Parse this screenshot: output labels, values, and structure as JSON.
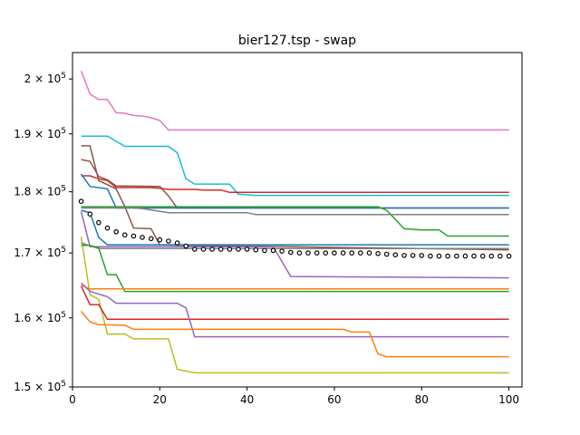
{
  "chart_data": {
    "type": "line",
    "title": "bier127.tsp - swap",
    "xlabel": "",
    "ylabel": "",
    "yscale": "log",
    "xlim": [
      0,
      103
    ],
    "ylim": [
      150000,
      205000
    ],
    "xticks": [
      0,
      20,
      40,
      60,
      80,
      100
    ],
    "xtick_labels": [
      "0",
      "20",
      "40",
      "60",
      "80",
      "100"
    ],
    "yticks": [
      150000,
      160000,
      170000,
      180000,
      190000,
      200000
    ],
    "ytick_labels": [
      "1.5 × 10^5",
      "1.6 × 10^5",
      "1.7 × 10^5",
      "1.8 × 10^5",
      "1.9 × 10^5",
      "2 × 10^5"
    ],
    "grid": false,
    "legend": "none",
    "series": [
      {
        "color": "#e377c2",
        "points": [
          [
            2,
            201500
          ],
          [
            4,
            197200
          ],
          [
            6,
            196200
          ],
          [
            8,
            196200
          ],
          [
            10,
            193800
          ],
          [
            12,
            193700
          ],
          [
            14,
            193300
          ],
          [
            16,
            193200
          ],
          [
            18,
            192900
          ],
          [
            20,
            192400
          ],
          [
            22,
            190700
          ],
          [
            100,
            190700
          ]
        ]
      },
      {
        "color": "#17becf",
        "points": [
          [
            2,
            189600
          ],
          [
            8,
            189600
          ],
          [
            12,
            187800
          ],
          [
            22,
            187800
          ],
          [
            24,
            186700
          ],
          [
            26,
            182200
          ],
          [
            28,
            181300
          ],
          [
            36,
            181300
          ],
          [
            38,
            179600
          ],
          [
            42,
            179400
          ],
          [
            100,
            179400
          ]
        ]
      },
      {
        "color": "#8c564b",
        "points": [
          [
            2,
            187900
          ],
          [
            4,
            187900
          ],
          [
            6,
            181900
          ],
          [
            10,
            180500
          ],
          [
            12,
            177500
          ],
          [
            14,
            174000
          ],
          [
            18,
            173900
          ],
          [
            20,
            171300
          ],
          [
            100,
            170500
          ]
        ]
      },
      {
        "color": "#8c564b",
        "points": [
          [
            2,
            185500
          ],
          [
            4,
            185200
          ],
          [
            6,
            182600
          ],
          [
            8,
            182000
          ],
          [
            10,
            181000
          ],
          [
            20,
            180900
          ],
          [
            22,
            179300
          ],
          [
            24,
            177300
          ],
          [
            100,
            177300
          ]
        ]
      },
      {
        "color": "#d62728",
        "points": [
          [
            2,
            182700
          ],
          [
            4,
            182700
          ],
          [
            6,
            182200
          ],
          [
            8,
            181900
          ],
          [
            10,
            180700
          ],
          [
            18,
            180700
          ],
          [
            20,
            180600
          ],
          [
            22,
            180400
          ],
          [
            28,
            180400
          ],
          [
            30,
            180300
          ],
          [
            34,
            180300
          ],
          [
            36,
            179900
          ],
          [
            100,
            179900
          ]
        ]
      },
      {
        "color": "#1f77b4",
        "points": [
          [
            2,
            183000
          ],
          [
            4,
            180900
          ],
          [
            8,
            180500
          ],
          [
            10,
            177300
          ],
          [
            100,
            177300
          ]
        ]
      },
      {
        "color": "#2ca02c",
        "points": [
          [
            2,
            177500
          ],
          [
            70,
            177500
          ],
          [
            72,
            176900
          ],
          [
            76,
            173900
          ],
          [
            80,
            173700
          ],
          [
            84,
            173700
          ],
          [
            86,
            172700
          ],
          [
            100,
            172700
          ]
        ]
      },
      {
        "color": "#7f7f7f",
        "points": [
          [
            2,
            177300
          ],
          [
            14,
            177300
          ],
          [
            16,
            177200
          ],
          [
            22,
            176500
          ],
          [
            40,
            176500
          ],
          [
            42,
            176200
          ],
          [
            100,
            176200
          ]
        ]
      },
      {
        "color": "#1f77b4",
        "points": [
          [
            2,
            176900
          ],
          [
            4,
            176500
          ],
          [
            6,
            172500
          ],
          [
            8,
            171300
          ],
          [
            100,
            171300
          ]
        ]
      },
      {
        "color": "#9467bd",
        "points": [
          [
            2,
            176700
          ],
          [
            4,
            171000
          ],
          [
            46,
            171000
          ],
          [
            50,
            166300
          ],
          [
            100,
            166100
          ]
        ]
      },
      {
        "color": "#bcbd22",
        "points": [
          [
            2,
            172600
          ],
          [
            4,
            163500
          ],
          [
            6,
            162800
          ],
          [
            8,
            157600
          ],
          [
            12,
            157600
          ],
          [
            14,
            156900
          ],
          [
            22,
            156900
          ],
          [
            24,
            152500
          ],
          [
            28,
            152000
          ],
          [
            100,
            152000
          ]
        ]
      },
      {
        "color": "#7f7f7f",
        "points": [
          [
            2,
            171600
          ],
          [
            6,
            170700
          ],
          [
            100,
            170700
          ]
        ]
      },
      {
        "color": "#2ca02c",
        "points": [
          [
            2,
            171200
          ],
          [
            4,
            171200
          ],
          [
            6,
            170800
          ],
          [
            8,
            166600
          ],
          [
            10,
            166600
          ],
          [
            12,
            164000
          ],
          [
            100,
            164000
          ]
        ]
      },
      {
        "color": "#ff7f0e",
        "points": [
          [
            2,
            164900
          ],
          [
            4,
            164400
          ],
          [
            100,
            164400
          ]
        ]
      },
      {
        "color": "#d62728",
        "points": [
          [
            2,
            164800
          ],
          [
            4,
            162000
          ],
          [
            6,
            162000
          ],
          [
            8,
            159800
          ],
          [
            100,
            159800
          ]
        ]
      },
      {
        "color": "#9467bd",
        "points": [
          [
            2,
            165300
          ],
          [
            4,
            164000
          ],
          [
            8,
            163200
          ],
          [
            10,
            162200
          ],
          [
            24,
            162200
          ],
          [
            26,
            161500
          ],
          [
            28,
            157200
          ],
          [
            100,
            157200
          ]
        ]
      },
      {
        "color": "#ff7f0e",
        "points": [
          [
            2,
            161000
          ],
          [
            4,
            159400
          ],
          [
            6,
            159000
          ],
          [
            12,
            158900
          ],
          [
            14,
            158300
          ],
          [
            62,
            158300
          ],
          [
            64,
            157900
          ],
          [
            68,
            157900
          ],
          [
            70,
            154700
          ],
          [
            72,
            154300
          ],
          [
            100,
            154300
          ]
        ]
      }
    ],
    "markers": {
      "color": "#000000",
      "points": [
        [
          2,
          178400
        ],
        [
          4,
          176300
        ],
        [
          6,
          174900
        ],
        [
          8,
          174000
        ],
        [
          10,
          173400
        ],
        [
          12,
          172900
        ],
        [
          14,
          172700
        ],
        [
          16,
          172500
        ],
        [
          18,
          172300
        ],
        [
          20,
          172100
        ],
        [
          22,
          171900
        ],
        [
          24,
          171600
        ],
        [
          26,
          171100
        ],
        [
          28,
          170600
        ],
        [
          30,
          170600
        ],
        [
          32,
          170600
        ],
        [
          34,
          170600
        ],
        [
          36,
          170600
        ],
        [
          38,
          170600
        ],
        [
          40,
          170600
        ],
        [
          42,
          170500
        ],
        [
          44,
          170400
        ],
        [
          46,
          170400
        ],
        [
          48,
          170300
        ],
        [
          50,
          170100
        ],
        [
          52,
          170000
        ],
        [
          54,
          170000
        ],
        [
          56,
          170000
        ],
        [
          58,
          170000
        ],
        [
          60,
          170000
        ],
        [
          62,
          170000
        ],
        [
          64,
          170000
        ],
        [
          66,
          170000
        ],
        [
          68,
          170000
        ],
        [
          70,
          169900
        ],
        [
          72,
          169800
        ],
        [
          74,
          169700
        ],
        [
          76,
          169600
        ],
        [
          78,
          169600
        ],
        [
          80,
          169600
        ],
        [
          82,
          169500
        ],
        [
          84,
          169500
        ],
        [
          86,
          169500
        ],
        [
          88,
          169500
        ],
        [
          90,
          169500
        ],
        [
          92,
          169500
        ],
        [
          94,
          169500
        ],
        [
          96,
          169500
        ],
        [
          98,
          169500
        ],
        [
          100,
          169500
        ]
      ]
    }
  }
}
